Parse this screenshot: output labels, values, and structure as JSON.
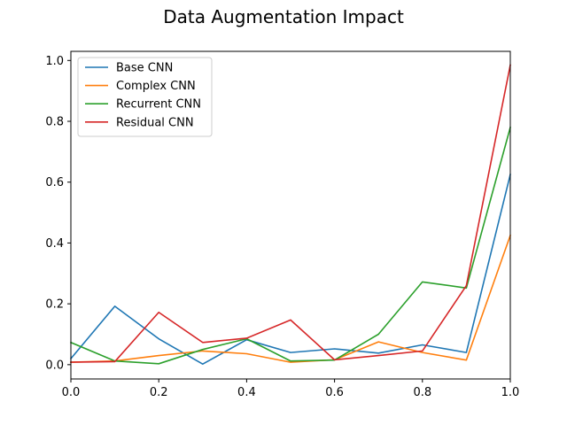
{
  "chart_data": {
    "type": "line",
    "title": "Data Augmentation Impact",
    "xlabel": "",
    "ylabel": "",
    "xlim": [
      0.0,
      1.0
    ],
    "ylim": [
      -0.047,
      1.03
    ],
    "x": [
      0.0,
      0.1,
      0.2,
      0.3,
      0.4,
      0.5,
      0.6,
      0.7,
      0.8,
      0.9,
      1.0
    ],
    "xticks": [
      "0.0",
      "0.2",
      "0.4",
      "0.6",
      "0.8",
      "1.0"
    ],
    "yticks": [
      "0.0",
      "0.2",
      "0.4",
      "0.6",
      "0.8",
      "1.0"
    ],
    "grid": false,
    "legend": "top-left",
    "series": [
      {
        "name": "Base CNN",
        "color": "#1f77b4",
        "values": [
          0.02,
          0.192,
          0.085,
          0.002,
          0.082,
          0.04,
          0.052,
          0.038,
          0.065,
          0.04,
          0.625
        ]
      },
      {
        "name": "Complex CNN",
        "color": "#ff7f0e",
        "values": [
          0.008,
          0.012,
          0.03,
          0.045,
          0.036,
          0.008,
          0.016,
          0.075,
          0.04,
          0.015,
          0.425
        ]
      },
      {
        "name": "Recurrent CNN",
        "color": "#2ca02c",
        "values": [
          0.073,
          0.012,
          0.003,
          0.05,
          0.085,
          0.012,
          0.015,
          0.1,
          0.272,
          0.252,
          0.78
        ]
      },
      {
        "name": "Residual CNN",
        "color": "#d62728",
        "values": [
          0.008,
          0.01,
          0.172,
          0.073,
          0.087,
          0.147,
          0.016,
          0.03,
          0.045,
          0.26,
          0.985
        ]
      }
    ]
  }
}
